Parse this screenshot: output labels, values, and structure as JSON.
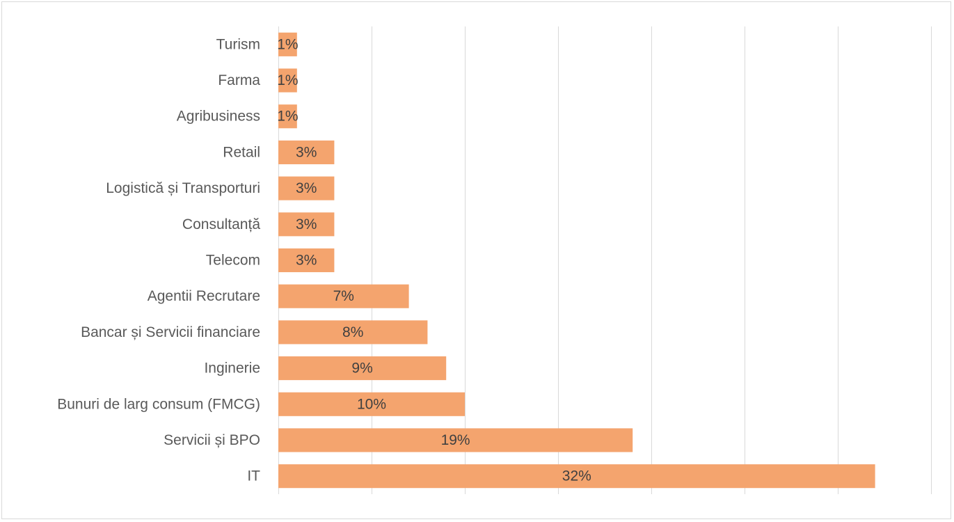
{
  "chart_data": {
    "type": "bar",
    "orientation": "horizontal",
    "categories": [
      "Turism",
      "Farma",
      "Agribusiness",
      "Retail",
      "Logistică și Transporturi",
      "Consultanță",
      "Telecom",
      "Agentii Recrutare",
      "Bancar și Servicii financiare",
      "Inginerie",
      "Bunuri de larg consum (FMCG)",
      "Servicii și BPO",
      "IT"
    ],
    "values": [
      1,
      1,
      1,
      3,
      3,
      3,
      3,
      7,
      8,
      9,
      10,
      19,
      32
    ],
    "value_labels": [
      "1%",
      "1%",
      "1%",
      "3%",
      "3%",
      "3%",
      "3%",
      "7%",
      "8%",
      "9%",
      "10%",
      "19%",
      "32%"
    ],
    "unit": "%",
    "xlim": [
      0,
      35
    ],
    "grid": true,
    "legend": "none",
    "colors": {
      "bar": "#f4a46e",
      "grid": "#d9d9d9",
      "category_text": "#595959",
      "value_text": "#404040"
    }
  }
}
